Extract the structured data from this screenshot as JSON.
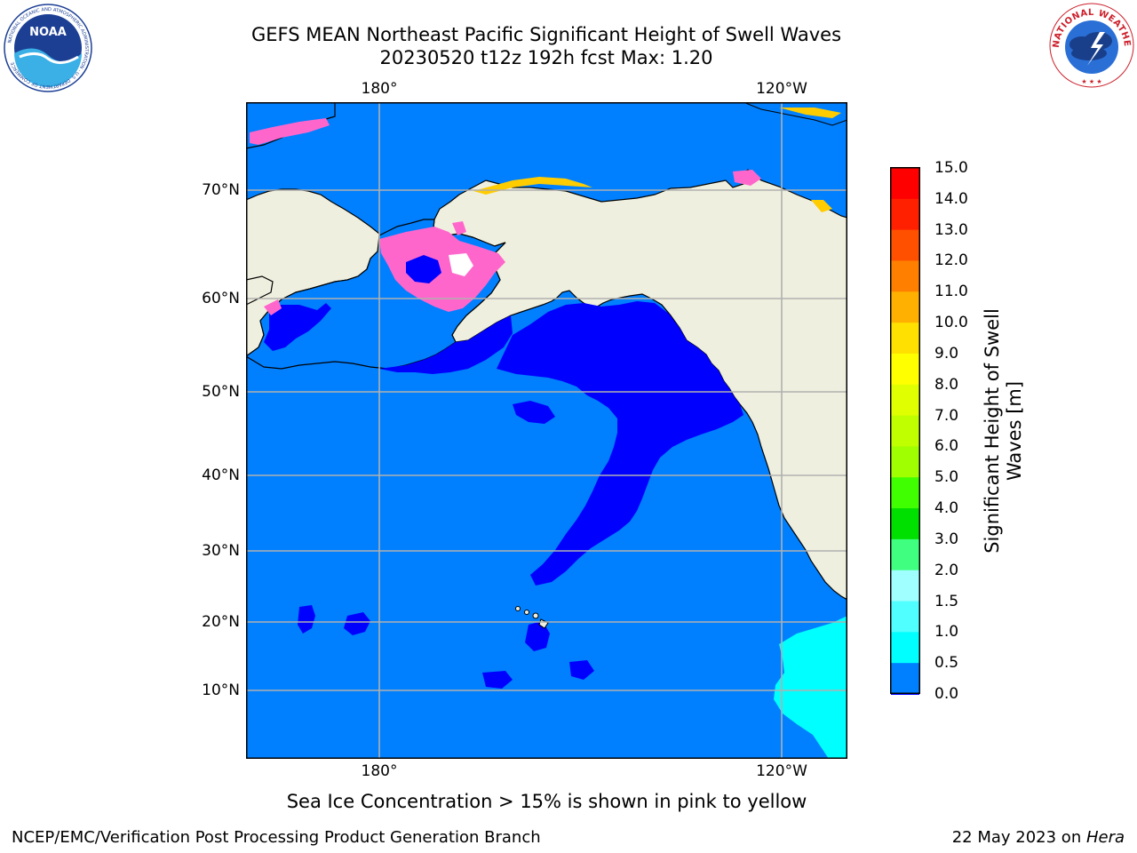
{
  "title": {
    "line1": "GEFS MEAN Northeast Pacific Significant Height of Swell Waves",
    "line2": "20230520 t12z 192h fcst   Max: 1.20"
  },
  "map": {
    "lon_labels_top": [
      "180°",
      "120°W"
    ],
    "lon_labels_bottom": [
      "180°",
      "120°W"
    ],
    "lat_labels": [
      "70°N",
      "60°N",
      "50°N",
      "40°N",
      "30°N",
      "20°N",
      "10°N"
    ],
    "colors": {
      "land": "#efefdf",
      "ocean_swell_0_5_to_1": "#0080ff",
      "ocean_swell_0_to_0_5": "#0000ff",
      "swell_1_to_1_5": "#00ffff",
      "ice_pink": "#ff66cc",
      "ice_yellow": "#ffcc00"
    }
  },
  "colorbar": {
    "ticks": [
      "15.0",
      "14.0",
      "13.0",
      "12.0",
      "11.0",
      "10.0",
      "9.0",
      "8.0",
      "7.0",
      "6.0",
      "5.0",
      "4.0",
      "3.0",
      "2.0",
      "1.5",
      "1.0",
      "0.5",
      "0.0"
    ],
    "colors_top_to_bottom": [
      "#ff0000",
      "#ff2000",
      "#ff5000",
      "#ff8000",
      "#ffb000",
      "#ffe000",
      "#ffff00",
      "#e0ff00",
      "#c0ff00",
      "#a0ff00",
      "#40ff00",
      "#00e000",
      "#40ff80",
      "#a0ffff",
      "#50ffff",
      "#00ffff",
      "#0080ff",
      "#0000ff"
    ],
    "title_line1": "Significant Height of Swell",
    "title_line2": "Waves [m]"
  },
  "caption": "Sea Ice Concentration > 15% is shown in pink to yellow",
  "footer": {
    "left": "NCEP/EMC/Verification Post Processing Product Generation Branch",
    "date": "22 May 2023 on ",
    "host": "Hera"
  },
  "logos": {
    "left": "noaa-logo",
    "right": "nws-logo",
    "left_text": "NOAA",
    "left_ring_text": "NATIONAL OCEANIC AND ATMOSPHERIC ADMINISTRATION · U.S. DEPARTMENT OF COMMERCE",
    "right_ring_text": "NATIONAL WEATHER SERVICE"
  }
}
